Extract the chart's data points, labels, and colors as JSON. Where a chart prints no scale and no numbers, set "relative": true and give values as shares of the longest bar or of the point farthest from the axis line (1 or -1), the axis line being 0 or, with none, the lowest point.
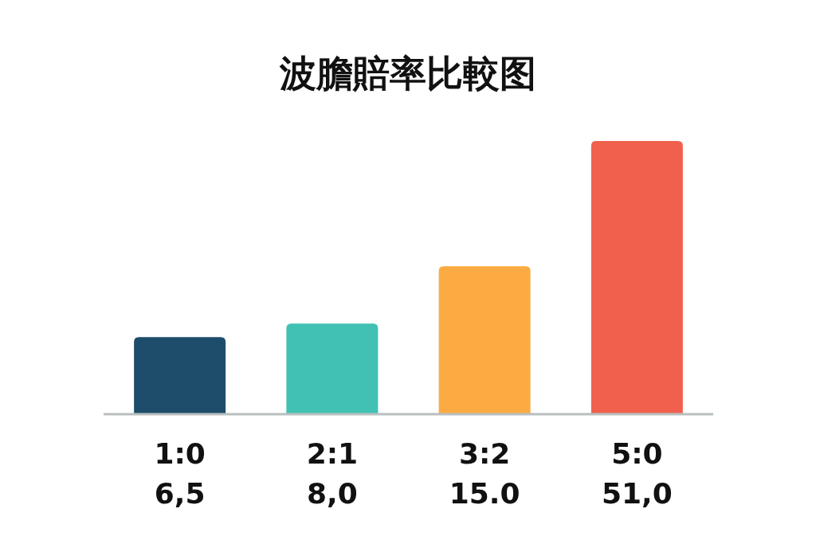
{
  "chart_data": {
    "type": "bar",
    "title": "波膽賠率比較图",
    "relative": true,
    "categories": [
      "1:0\n6,5",
      "2:1\n8,0",
      "3:2\n15.0",
      "5:0\n51,0"
    ],
    "values": [
      0.28,
      0.33,
      0.54,
      1
    ],
    "colors": [
      "#1e4d6b",
      "#40c1b3",
      "#fbab41",
      "#f0604d"
    ]
  }
}
